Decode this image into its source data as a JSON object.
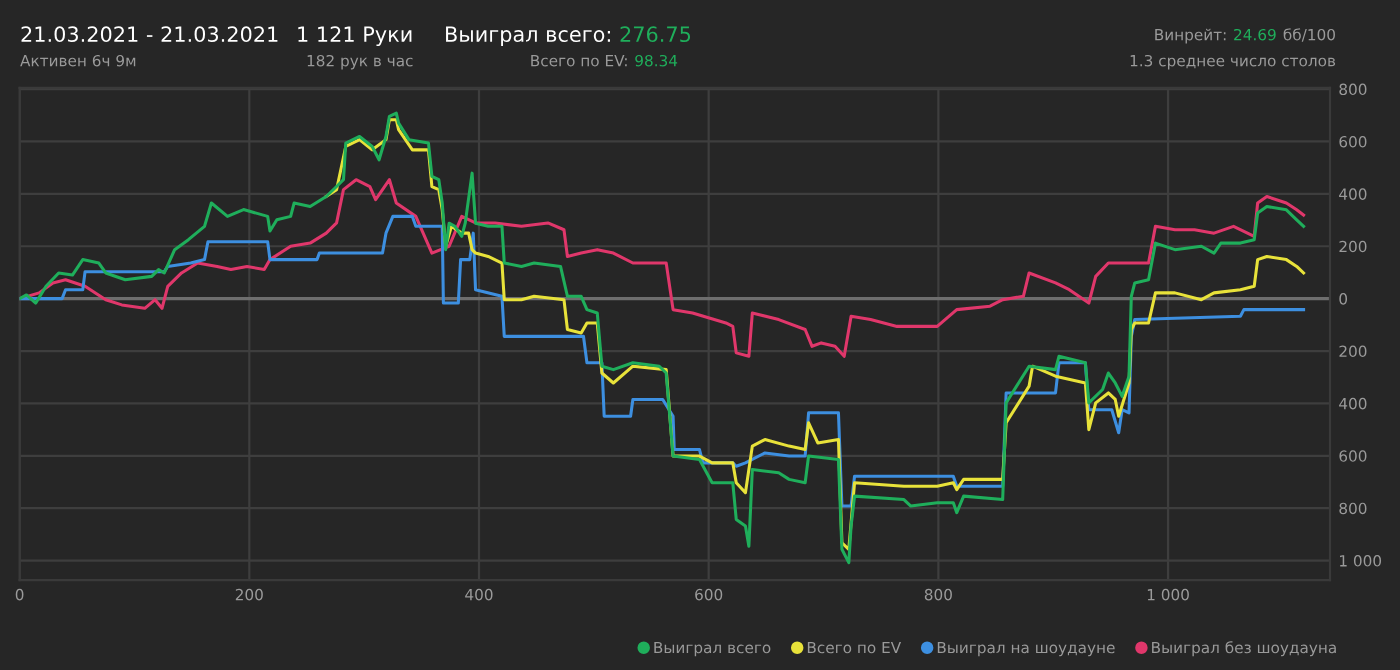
{
  "chart_data": {
    "type": "line",
    "title": "21.03.2021 - 21.03.2021",
    "subtitle": "Активен 6ч 9м",
    "annotations": [
      "1 121 Руки",
      "182 рук в час",
      "Выиграл всего:",
      "276.75",
      "Всего по EV:",
      "98.34",
      "Винрейт:",
      "24.69",
      "бб/100",
      "1.3 среднее число столов"
    ],
    "xlim": [
      0,
      1141
    ],
    "ylim": [
      -1075,
      805
    ],
    "xticks": [
      0,
      200,
      400,
      600,
      800,
      {
        "value": 1000,
        "label": "1 000"
      }
    ],
    "yticks": [
      {
        "value": -1000,
        "label": "1 000"
      },
      {
        "value": -800,
        "label": "800"
      },
      {
        "value": -600,
        "label": "600"
      },
      {
        "value": -400,
        "label": "400"
      },
      {
        "value": -200,
        "label": "200"
      },
      0,
      200,
      400,
      600,
      800
    ],
    "grid": true,
    "legend": "bottom right",
    "marker": "none",
    "line_style": "solid",
    "ref_lines": [
      {
        "axis": "y",
        "value": 0,
        "color": "#6e6e6e"
      }
    ],
    "series": [
      {
        "name": "Выиграл всего",
        "color": "#1fae5b",
        "x": [
          0,
          6,
          14,
          23,
          34,
          46,
          55,
          69,
          75,
          92,
          115,
          121,
          126,
          135,
          147,
          161,
          167,
          181,
          195,
          216,
          218,
          224,
          236,
          239,
          253,
          267,
          276,
          282,
          284,
          296,
          307,
          313,
          319,
          322,
          328,
          330,
          339,
          356,
          359,
          365,
          368,
          371,
          374,
          379,
          385,
          388,
          394,
          397,
          408,
          420,
          422,
          437,
          448,
          471,
          477,
          489,
          494,
          503,
          507,
          517,
          534,
          557,
          563,
          569,
          592,
          603,
          621,
          624,
          632,
          635,
          638,
          661,
          670,
          684,
          687,
          713,
          716,
          722,
          724,
          727,
          770,
          776,
          799,
          813,
          816,
          822,
          856,
          859,
          879,
          902,
          905,
          928,
          931,
          943,
          948,
          954,
          960,
          966,
          968,
          971,
          983,
          989,
          1006,
          1029,
          1040,
          1046,
          1063,
          1075,
          1078,
          1086,
          1103,
          1112,
          1118
        ],
        "values": [
          0,
          14,
          -17,
          47,
          98,
          90,
          149,
          136,
          98,
          72,
          85,
          111,
          98,
          187,
          225,
          276,
          365,
          314,
          340,
          314,
          258,
          301,
          314,
          365,
          352,
          390,
          428,
          454,
          594,
          619,
          581,
          530,
          619,
          696,
          708,
          670,
          607,
          594,
          467,
          454,
          365,
          187,
          288,
          276,
          238,
          288,
          479,
          288,
          276,
          276,
          136,
          123,
          136,
          123,
          9,
          9,
          -42,
          -55,
          -258,
          -271,
          -245,
          -258,
          -284,
          -601,
          -614,
          -703,
          -703,
          -843,
          -868,
          -945,
          -652,
          -665,
          -690,
          -703,
          -601,
          -614,
          -957,
          -1008,
          -868,
          -754,
          -767,
          -792,
          -779,
          -779,
          -817,
          -754,
          -767,
          -398,
          -258,
          -271,
          -220,
          -245,
          -398,
          -347,
          -284,
          -322,
          -373,
          -296,
          9,
          60,
          72,
          212,
          187,
          200,
          174,
          212,
          212,
          225,
          327,
          352,
          339,
          301,
          276
        ]
      },
      {
        "name": "Всего по EV",
        "color": "#e8e23a",
        "x": [
          267,
          276,
          284,
          296,
          307,
          319,
          322,
          328,
          330,
          342,
          356,
          359,
          365,
          368,
          371,
          376,
          385,
          391,
          394,
          397,
          408,
          420,
          422,
          437,
          448,
          474,
          477,
          489,
          494,
          503,
          507,
          517,
          534,
          563,
          569,
          592,
          603,
          621,
          624,
          632,
          638,
          649,
          670,
          684,
          687,
          695,
          713,
          716,
          722,
          724,
          727,
          770,
          799,
          813,
          816,
          822,
          856,
          859,
          879,
          882,
          902,
          928,
          931,
          937,
          948,
          954,
          957,
          966,
          968,
          971,
          983,
          989,
          1006,
          1029,
          1040,
          1063,
          1075,
          1078,
          1086,
          1103,
          1112,
          1118
        ],
        "values": [
          390,
          416,
          581,
          607,
          568,
          607,
          683,
          683,
          645,
          568,
          568,
          428,
          416,
          339,
          200,
          276,
          250,
          250,
          187,
          174,
          161,
          136,
          -4,
          -4,
          9,
          -4,
          -118,
          -131,
          -93,
          -93,
          -284,
          -322,
          -258,
          -271,
          -601,
          -601,
          -627,
          -627,
          -703,
          -741,
          -563,
          -538,
          -563,
          -576,
          -474,
          -551,
          -538,
          -932,
          -957,
          -856,
          -703,
          -716,
          -716,
          -703,
          -729,
          -690,
          -690,
          -474,
          -334,
          -258,
          -296,
          -322,
          -500,
          -398,
          -360,
          -385,
          -449,
          -322,
          -118,
          -93,
          -93,
          22,
          22,
          -4,
          22,
          34,
          47,
          149,
          161,
          149,
          123,
          98
        ]
      },
      {
        "name": "Выиграл на шоудауне",
        "color": "#3d8fe0",
        "x": [
          0,
          37,
          40,
          55,
          57,
          126,
          129,
          149,
          161,
          164,
          216,
          218,
          259,
          261,
          316,
          319,
          325,
          342,
          345,
          368,
          369,
          382,
          384,
          392,
          395,
          397,
          420,
          422,
          491,
          494,
          507,
          509,
          532,
          534,
          560,
          569,
          570,
          592,
          595,
          621,
          624,
          632,
          649,
          670,
          684,
          687,
          713,
          716,
          724,
          727,
          813,
          816,
          856,
          859,
          902,
          905,
          928,
          931,
          951,
          957,
          960,
          966,
          968,
          971,
          1063,
          1066,
          1118
        ],
        "values": [
          0,
          0,
          34,
          34,
          103,
          103,
          123,
          136,
          149,
          217,
          217,
          149,
          149,
          174,
          174,
          250,
          314,
          314,
          276,
          276,
          -17,
          -17,
          149,
          149,
          250,
          34,
          9,
          -144,
          -144,
          -245,
          -245,
          -449,
          -449,
          -385,
          -385,
          -449,
          -576,
          -576,
          -627,
          -627,
          -640,
          -627,
          -589,
          -601,
          -601,
          -436,
          -436,
          -792,
          -792,
          -678,
          -678,
          -716,
          -716,
          -360,
          -360,
          -245,
          -245,
          -424,
          -424,
          -512,
          -424,
          -436,
          -144,
          -80,
          -67,
          -42,
          -42
        ]
      },
      {
        "name": "Выиграл без шоудауна",
        "color": "#e0376b",
        "x": [
          0,
          17,
          29,
          40,
          57,
          75,
          89,
          109,
          118,
          124,
          129,
          141,
          155,
          172,
          184,
          198,
          213,
          218,
          236,
          253,
          267,
          276,
          282,
          293,
          305,
          310,
          322,
          328,
          345,
          359,
          374,
          385,
          397,
          414,
          437,
          460,
          474,
          477,
          489,
          503,
          517,
          534,
          563,
          569,
          586,
          615,
          621,
          624,
          635,
          638,
          661,
          684,
          690,
          698,
          710,
          718,
          724,
          741,
          764,
          799,
          816,
          845,
          856,
          874,
          879,
          902,
          914,
          931,
          937,
          948,
          966,
          983,
          989,
          1006,
          1023,
          1040,
          1057,
          1075,
          1078,
          1086,
          1103,
          1112,
          1118
        ],
        "values": [
          0,
          22,
          60,
          72,
          47,
          -4,
          -24,
          -37,
          -4,
          -37,
          47,
          98,
          136,
          123,
          111,
          123,
          111,
          149,
          200,
          212,
          250,
          289,
          416,
          454,
          428,
          378,
          454,
          365,
          314,
          174,
          200,
          314,
          289,
          289,
          276,
          289,
          263,
          161,
          174,
          187,
          174,
          136,
          136,
          -42,
          -55,
          -93,
          -106,
          -207,
          -220,
          -55,
          -80,
          -118,
          -182,
          -169,
          -182,
          -220,
          -67,
          -80,
          -106,
          -106,
          -42,
          -29,
          -4,
          9,
          98,
          60,
          34,
          -17,
          85,
          136,
          136,
          136,
          276,
          263,
          263,
          250,
          276,
          238,
          365,
          390,
          365,
          339,
          319
        ]
      }
    ]
  }
}
